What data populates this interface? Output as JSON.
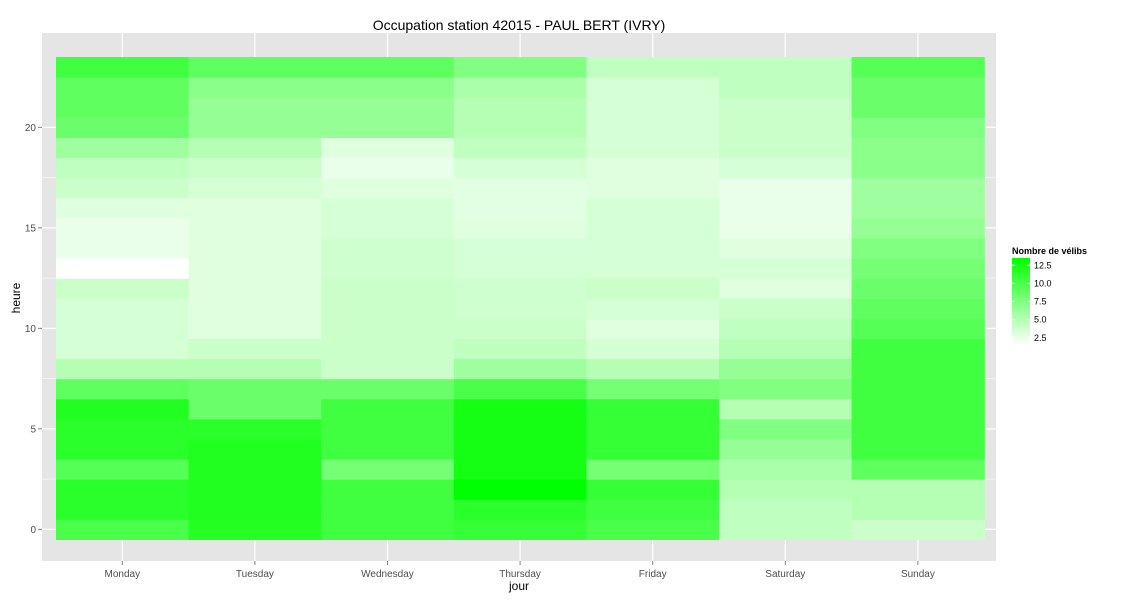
{
  "chart_data": {
    "type": "heatmap",
    "title": "Occupation station 42015 - PAUL BERT (IVRY)",
    "xlabel": "jour",
    "ylabel": "heure",
    "categories": [
      "Monday",
      "Tuesday",
      "Wednesday",
      "Thursday",
      "Friday",
      "Saturday",
      "Sunday"
    ],
    "y": [
      0,
      1,
      2,
      3,
      4,
      5,
      6,
      7,
      8,
      9,
      10,
      11,
      12,
      13,
      14,
      15,
      16,
      17,
      18,
      19,
      20,
      21,
      22,
      23
    ],
    "ylim": [
      -0.5,
      23.5
    ],
    "yticks": [
      0,
      5,
      10,
      15,
      20
    ],
    "grid": true,
    "values": [
      [
        10.0,
        11.8,
        10.5,
        11.0,
        10.0,
        4.5,
        4.0
      ],
      [
        11.5,
        12.0,
        10.5,
        11.5,
        10.5,
        4.5,
        5.0
      ],
      [
        11.5,
        12.0,
        10.5,
        13.5,
        11.0,
        5.0,
        5.0
      ],
      [
        9.5,
        12.0,
        8.0,
        12.5,
        8.0,
        5.5,
        9.0
      ],
      [
        11.5,
        12.0,
        10.5,
        12.5,
        11.0,
        6.5,
        10.5
      ],
      [
        11.5,
        11.5,
        10.5,
        12.5,
        11.0,
        7.5,
        10.5
      ],
      [
        12.0,
        8.5,
        10.5,
        12.5,
        11.0,
        5.0,
        10.5
      ],
      [
        9.0,
        8.5,
        8.5,
        10.0,
        8.0,
        7.5,
        10.5
      ],
      [
        5.0,
        5.0,
        4.0,
        6.0,
        5.0,
        6.5,
        10.5
      ],
      [
        3.5,
        4.0,
        4.0,
        4.5,
        3.5,
        5.0,
        10.5
      ],
      [
        3.5,
        3.0,
        4.0,
        4.0,
        3.0,
        4.5,
        9.5
      ],
      [
        3.5,
        3.0,
        4.0,
        3.8,
        3.5,
        4.0,
        9.0
      ],
      [
        4.0,
        3.0,
        4.0,
        3.8,
        4.0,
        3.0,
        8.5
      ],
      [
        1.5,
        3.0,
        3.8,
        3.5,
        3.5,
        3.5,
        8.0
      ],
      [
        2.5,
        3.0,
        3.8,
        3.5,
        3.5,
        3.0,
        7.5
      ],
      [
        2.5,
        3.0,
        3.5,
        3.0,
        3.5,
        2.5,
        6.5
      ],
      [
        3.0,
        3.0,
        3.5,
        2.8,
        3.5,
        2.5,
        6.0
      ],
      [
        4.0,
        3.5,
        3.0,
        2.8,
        3.0,
        2.5,
        6.0
      ],
      [
        4.5,
        4.0,
        2.5,
        3.5,
        3.0,
        3.5,
        7.0
      ],
      [
        6.0,
        5.0,
        3.0,
        4.5,
        3.5,
        4.0,
        7.0
      ],
      [
        8.5,
        6.5,
        6.5,
        5.0,
        3.5,
        4.0,
        7.5
      ],
      [
        9.0,
        6.5,
        6.5,
        5.0,
        3.5,
        4.0,
        8.5
      ],
      [
        9.0,
        7.0,
        7.0,
        5.5,
        3.5,
        4.5,
        8.5
      ],
      [
        10.5,
        9.0,
        9.0,
        7.5,
        4.5,
        4.5,
        9.5
      ]
    ],
    "color_scale": {
      "low": "#ffffff",
      "high": "#00ff00",
      "min": 1.5,
      "max": 13.5
    },
    "legend": {
      "title": "Nombre de vélibs",
      "position": "right",
      "ticks": [
        "12.5",
        "10.0",
        "7.5",
        "5.0",
        "2.5"
      ],
      "tick_values": [
        12.5,
        10.0,
        7.5,
        5.0,
        2.5
      ]
    },
    "panel_background": "#e5e5e5",
    "grid_color": "#ffffff"
  }
}
